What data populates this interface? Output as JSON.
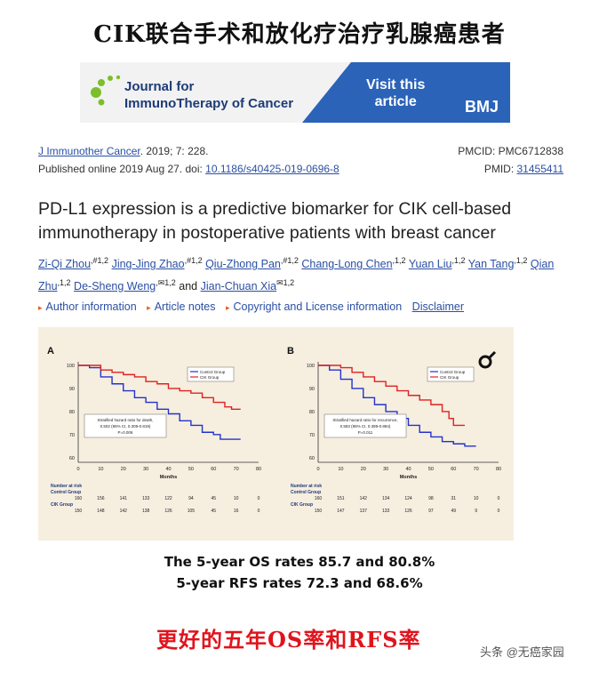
{
  "headline": "CIK联合手术和放化疗治疗乳腺癌患者",
  "banner": {
    "journal_name": "Journal for\nImmunoTherapy of Cancer",
    "visit_text": "Visit this\narticle",
    "publisher": "BMJ",
    "colors": {
      "blue": "#2b63b8",
      "green": "#7bbf2a",
      "navy": "#1d3b78"
    }
  },
  "citation": {
    "journal_link": "J Immunother Cancer",
    "journal_rest": ". 2019; 7: 228.",
    "published_prefix": "Published online 2019 Aug 27. doi: ",
    "doi": "10.1186/s40425-019-0696-8",
    "pmcid": "PMCID: PMC6712838",
    "pmid_label": "PMID: ",
    "pmid": "31455411"
  },
  "article_title": "PD-L1 expression is a predictive biomarker for CIK cell-based immunotherapy in postoperative patients with breast cancer",
  "authors": [
    {
      "name": "Zi-Qi Zhou",
      "sup": ",#1,2"
    },
    {
      "name": "Jing-Jing Zhao",
      "sup": ",#1,2"
    },
    {
      "name": "Qiu-Zhong Pan",
      "sup": ",#1,2"
    },
    {
      "name": "Chang-Long Chen",
      "sup": ",1,2"
    },
    {
      "name": "Yuan Liu",
      "sup": ",1,2"
    },
    {
      "name": "Yan Tang",
      "sup": ",1,2"
    },
    {
      "name": "Qian Zhu",
      "sup": ",1,2"
    },
    {
      "name": "De-Sheng Weng",
      "sup": ",✉1,2"
    },
    {
      "name": "Jian-Chuan Xia",
      "sup": "✉1,2"
    }
  ],
  "authors_and": "and",
  "info_links": {
    "author_info": "Author information",
    "article_notes": "Article notes",
    "copyright": "Copyright and License information",
    "disclaimer": "Disclaimer"
  },
  "figure": {
    "panel_a": {
      "label": "A",
      "legend": [
        "Control Group",
        "CIK Group"
      ],
      "hazard_text": [
        "Stratified hazard ratio for death,",
        "0.502 (95% CI, 0.309-0.819)",
        "P=0.006"
      ],
      "risk_control": [
        "160",
        "156",
        "141",
        "133",
        "122",
        "94",
        "45",
        "10",
        "0"
      ],
      "risk_cik": [
        "150",
        "148",
        "142",
        "138",
        "126",
        "105",
        "45",
        "16",
        "0"
      ]
    },
    "panel_b": {
      "label": "B",
      "legend": [
        "Control Group",
        "CIK Group"
      ],
      "hazard_text": [
        "Stratified hazard ratio for recurrence,",
        "0.583 (95% CI, 0.389-0.884)",
        "P=0.011"
      ],
      "risk_control": [
        "160",
        "151",
        "142",
        "134",
        "124",
        "98",
        "31",
        "10",
        "0"
      ],
      "risk_cik": [
        "150",
        "147",
        "137",
        "133",
        "126",
        "97",
        "49",
        "9",
        "0"
      ]
    },
    "xlabel": "Months",
    "x_ticks": [
      "0",
      "10",
      "20",
      "30",
      "40",
      "50",
      "60",
      "70",
      "80"
    ],
    "y_ticks": [
      "100",
      "90",
      "80",
      "70",
      "60"
    ],
    "risk_title": "Number at risk",
    "risk_control_label": "Control Group",
    "risk_cik_label": "CIK Group",
    "colors": {
      "control": "#2233cc",
      "cik": "#dd2222"
    }
  },
  "stats": {
    "line1": "The 5-year OS rates 85.7 and 80.8%",
    "line2": "5-year RFS rates 72.3 and 68.6%"
  },
  "bottom_text": "更好的五年OS率和RFS率",
  "watermark": "头条 @无癌家园"
}
